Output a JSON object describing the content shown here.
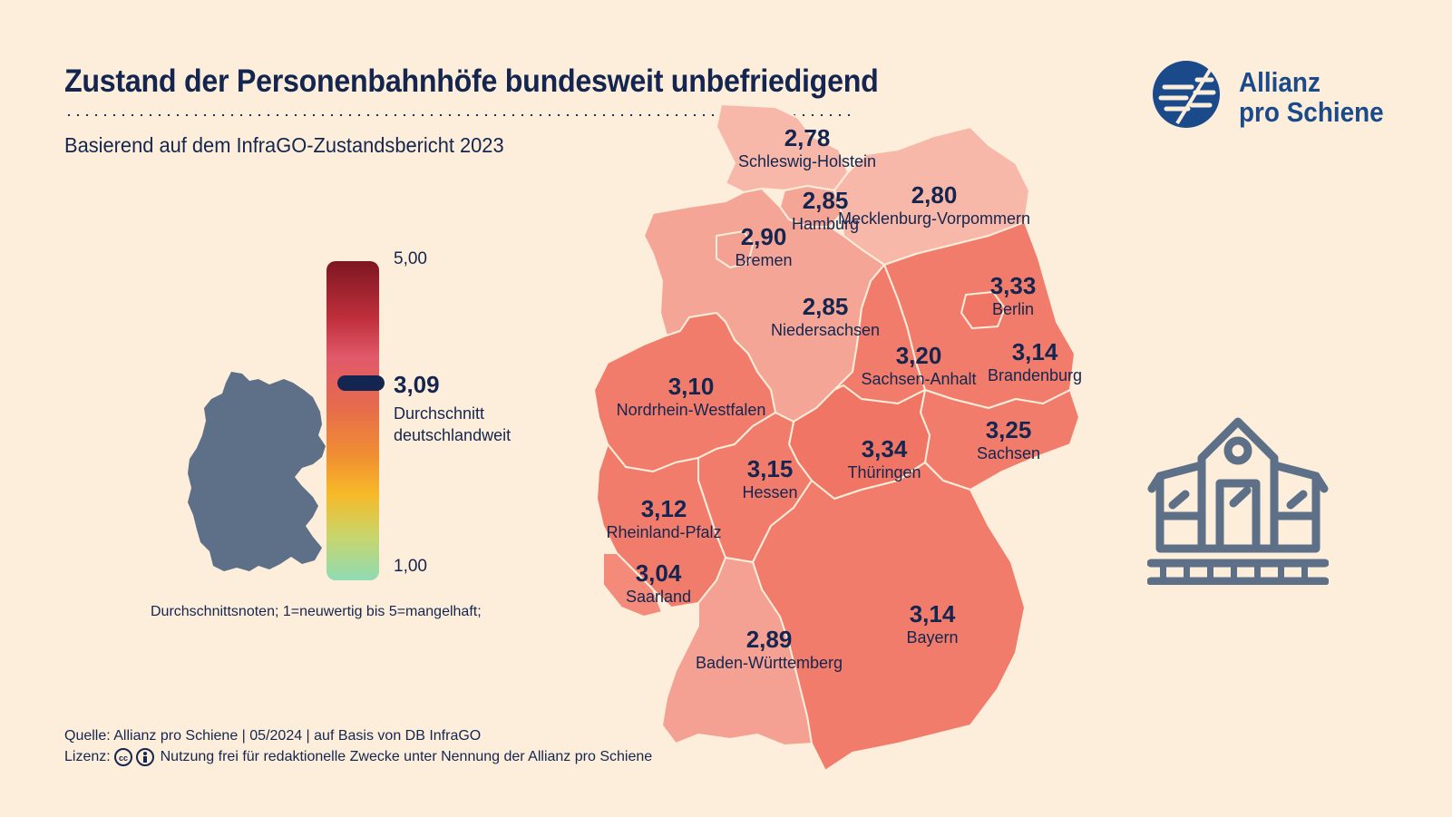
{
  "header": {
    "title": "Zustand der Personenbahnhöfe bundesweit unbefriedigend",
    "subtitle": "Basierend auf dem InfraGO-Zustandsbericht 2023"
  },
  "logo": {
    "line1": "Allianz",
    "line2": "pro Schiene"
  },
  "scale": {
    "max_label": "5,00",
    "min_label": "1,00",
    "average_value": "3,09",
    "average_label_1": "Durchschnitt",
    "average_label_2": "deutschlandweit",
    "note": "Durchschnittsnoten; 1=neuwertig bis 5=mangelhaft;"
  },
  "regions": [
    {
      "name": "Schleswig-Holstein",
      "value": "2,78",
      "color": "#f7b8a9"
    },
    {
      "name": "Hamburg",
      "value": "2,85",
      "color": "#f5a596"
    },
    {
      "name": "Mecklenburg-Vorpommern",
      "value": "2,80",
      "color": "#f7b8a9"
    },
    {
      "name": "Bremen",
      "value": "2,90",
      "color": "#f4a092"
    },
    {
      "name": "Niedersachsen",
      "value": "2,85",
      "color": "#f5a596"
    },
    {
      "name": "Berlin",
      "value": "3,33",
      "color": "#f07565"
    },
    {
      "name": "Sachsen-Anhalt",
      "value": "3,20",
      "color": "#f27c6b"
    },
    {
      "name": "Brandenburg",
      "value": "3,14",
      "color": "#f27c6b"
    },
    {
      "name": "Nordrhein-Westfalen",
      "value": "3,10",
      "color": "#f27c6b"
    },
    {
      "name": "Sachsen",
      "value": "3,25",
      "color": "#f27c6b"
    },
    {
      "name": "Thüringen",
      "value": "3,34",
      "color": "#f07565"
    },
    {
      "name": "Hessen",
      "value": "3,15",
      "color": "#f27c6b"
    },
    {
      "name": "Rheinland-Pfalz",
      "value": "3,12",
      "color": "#f27c6b"
    },
    {
      "name": "Saarland",
      "value": "3,04",
      "color": "#f38a7a"
    },
    {
      "name": "Bayern",
      "value": "3,14",
      "color": "#f27c6b"
    },
    {
      "name": "Baden-Württemberg",
      "value": "2,89",
      "color": "#f4a092"
    }
  ],
  "footer": {
    "source": "Quelle: Allianz pro Schiene | 05/2024 | auf Basis von DB InfraGO",
    "license_prefix": "Lizenz:",
    "license_text": "Nutzung frei für redaktionelle Zwecke unter Nennung der Allianz pro Schiene"
  },
  "icons": [
    "allianz-logo-icon",
    "germany-silhouette-icon",
    "station-building-icon",
    "cc-icon",
    "cc-by-icon"
  ]
}
